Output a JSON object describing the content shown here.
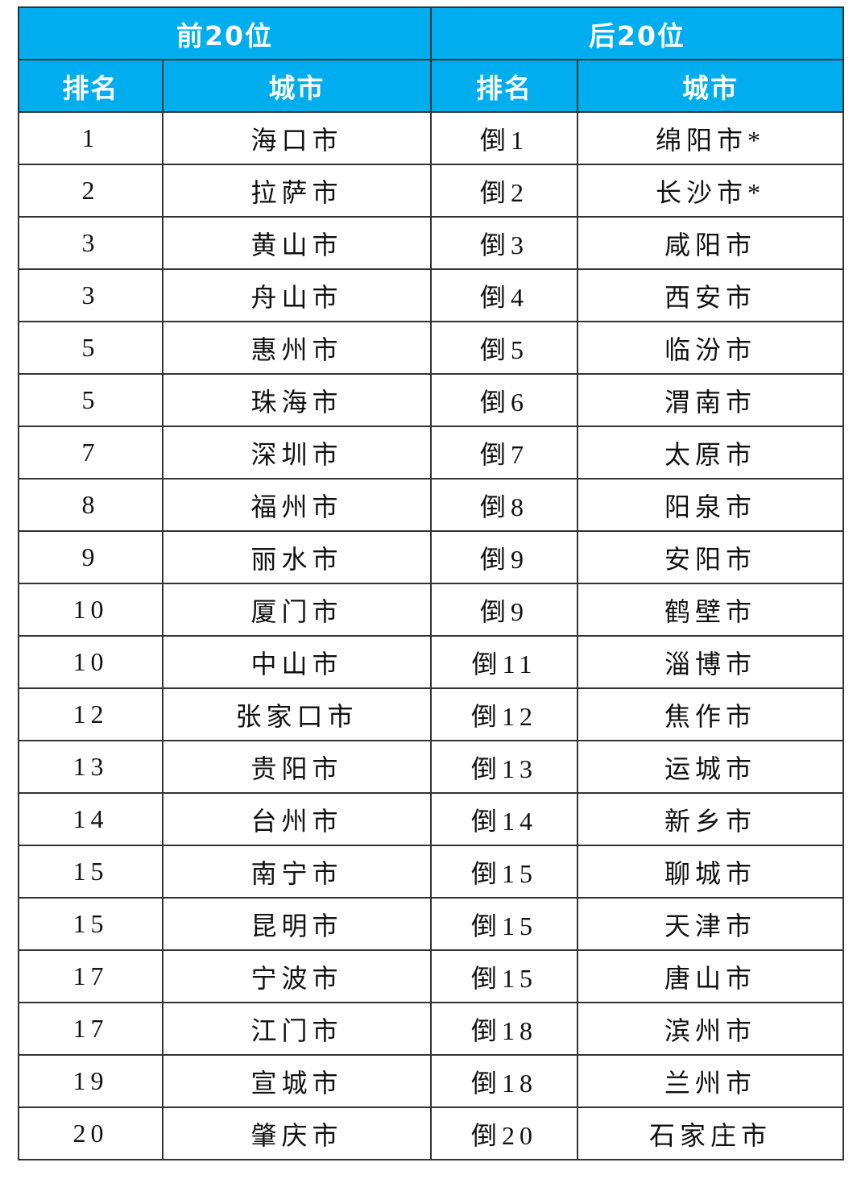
{
  "table": {
    "groups": [
      "前20位",
      "后20位"
    ],
    "columns": [
      "排名",
      "城市",
      "排名",
      "城市"
    ],
    "rows": [
      [
        "1",
        "海口市",
        "倒1",
        "绵阳市*"
      ],
      [
        "2",
        "拉萨市",
        "倒2",
        "长沙市*"
      ],
      [
        "3",
        "黄山市",
        "倒3",
        "咸阳市"
      ],
      [
        "3",
        "舟山市",
        "倒4",
        "西安市"
      ],
      [
        "5",
        "惠州市",
        "倒5",
        "临汾市"
      ],
      [
        "5",
        "珠海市",
        "倒6",
        "渭南市"
      ],
      [
        "7",
        "深圳市",
        "倒7",
        "太原市"
      ],
      [
        "8",
        "福州市",
        "倒8",
        "阳泉市"
      ],
      [
        "9",
        "丽水市",
        "倒9",
        "安阳市"
      ],
      [
        "10",
        "厦门市",
        "倒9",
        "鹤壁市"
      ],
      [
        "10",
        "中山市",
        "倒11",
        "淄博市"
      ],
      [
        "12",
        "张家口市",
        "倒12",
        "焦作市"
      ],
      [
        "13",
        "贵阳市",
        "倒13",
        "运城市"
      ],
      [
        "14",
        "台州市",
        "倒14",
        "新乡市"
      ],
      [
        "15",
        "南宁市",
        "倒15",
        "聊城市"
      ],
      [
        "15",
        "昆明市",
        "倒15",
        "天津市"
      ],
      [
        "17",
        "宁波市",
        "倒15",
        "唐山市"
      ],
      [
        "17",
        "江门市",
        "倒18",
        "滨州市"
      ],
      [
        "19",
        "宣城市",
        "倒18",
        "兰州市"
      ],
      [
        "20",
        "肇庆市",
        "倒20",
        "石家庄市"
      ]
    ]
  }
}
